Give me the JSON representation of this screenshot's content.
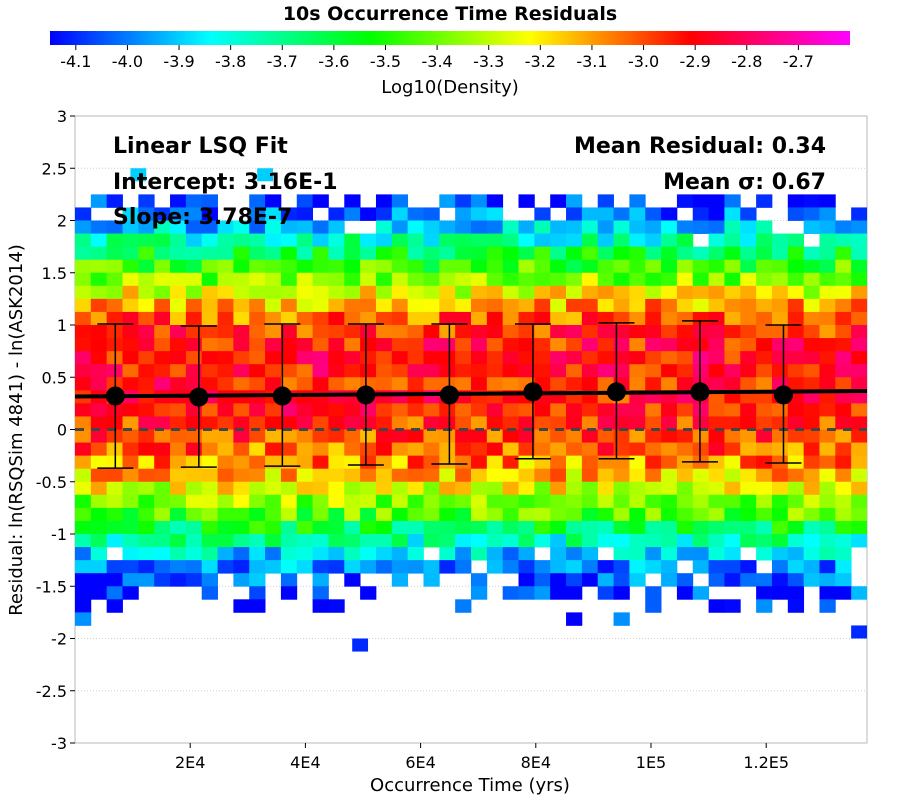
{
  "chart_data": {
    "type": "heatmap",
    "title": "10s Occurrence Time Residuals",
    "colorbar": {
      "label": "Log10(Density)",
      "ticks": [
        "-4.1",
        "-4.0",
        "-3.9",
        "-3.8",
        "-3.7",
        "-3.6",
        "-3.5",
        "-3.4",
        "-3.3",
        "-3.2",
        "-3.1",
        "-3.0",
        "-2.9",
        "-2.8",
        "-2.7"
      ],
      "range": [
        -4.15,
        -2.6
      ],
      "colors": [
        "#0000ff",
        "#00ffff",
        "#00ff00",
        "#ffff00",
        "#ff0000",
        "#ff00ff"
      ]
    },
    "xlabel": "Occurrence Time (yrs)",
    "ylabel": "Residual: ln(RSQSim 4841) - ln(ASK2014)",
    "xlim": [
      0,
      137500
    ],
    "ylim": [
      -3,
      3
    ],
    "xticks": [
      {
        "value": 20000,
        "label": "2E4"
      },
      {
        "value": 40000,
        "label": "4E4"
      },
      {
        "value": 60000,
        "label": "6E4"
      },
      {
        "value": 80000,
        "label": "8E4"
      },
      {
        "value": 100000,
        "label": "1E5"
      },
      {
        "value": 120000,
        "label": "1.2E5"
      }
    ],
    "yticks": [
      {
        "value": 3,
        "label": "3"
      },
      {
        "value": 2.5,
        "label": "2.5"
      },
      {
        "value": 2,
        "label": "2"
      },
      {
        "value": 1.5,
        "label": "1.5"
      },
      {
        "value": 1,
        "label": "1"
      },
      {
        "value": 0.5,
        "label": "0.5"
      },
      {
        "value": 0,
        "label": "0"
      },
      {
        "value": -0.5,
        "label": "-0.5"
      },
      {
        "value": -1,
        "label": "-1"
      },
      {
        "value": -1.5,
        "label": "-1.5"
      },
      {
        "value": -2,
        "label": "-2"
      },
      {
        "value": -2.5,
        "label": "-2.5"
      },
      {
        "value": -3,
        "label": "-3"
      }
    ],
    "grid": true,
    "bins": {
      "x_width": 2750,
      "y_height": 0.125
    },
    "density_profile": {
      "y_centers": [
        2.1875,
        2.0625,
        1.9375,
        1.8125,
        1.6875,
        1.5625,
        1.4375,
        1.3125,
        1.1875,
        1.0625,
        0.9375,
        0.8125,
        0.6875,
        0.5625,
        0.4375,
        0.3125,
        0.1875,
        0.0625,
        -0.0625,
        -0.1875,
        -0.3125,
        -0.4375,
        -0.5625,
        -0.6875,
        -0.8125,
        -0.9375,
        -1.0625,
        -1.1875,
        -1.3125,
        -1.4375,
        -1.5625,
        -1.6875,
        -1.8125
      ],
      "log10_density": [
        -4.08,
        -4.02,
        -3.9,
        -3.75,
        -3.6,
        -3.48,
        -3.36,
        -3.25,
        -3.12,
        -3.02,
        -2.95,
        -2.92,
        -2.9,
        -2.9,
        -2.92,
        -2.92,
        -2.93,
        -2.95,
        -2.98,
        -3.02,
        -3.08,
        -3.15,
        -3.25,
        -3.35,
        -3.45,
        -3.6,
        -3.75,
        -3.88,
        -3.98,
        -4.05,
        -4.08,
        -4.1,
        -4.12
      ],
      "coverage": [
        0.55,
        0.75,
        0.92,
        0.97,
        0.98,
        0.99,
        1,
        1,
        1,
        1,
        1,
        1,
        1,
        1,
        1,
        1,
        1,
        1,
        1,
        1,
        1,
        1,
        1,
        1,
        1,
        1,
        1,
        0.95,
        0.85,
        0.7,
        0.55,
        0.3,
        0.12
      ]
    },
    "outlier_cells": [
      {
        "x": 11000,
        "y": 2.4375,
        "log10_density": -3.9
      },
      {
        "x": 33000,
        "y": 2.4375,
        "log10_density": -3.9
      },
      {
        "x": 49500,
        "y": -2.0625,
        "log10_density": -4.1
      },
      {
        "x": 136125,
        "y": -1.9375,
        "log10_density": -4.1
      }
    ],
    "series": [
      {
        "name": "Linear LSQ Fit",
        "type": "line",
        "x": [
          0,
          137500
        ],
        "y": [
          0.316,
          0.368
        ]
      },
      {
        "type": "scatter_errorbar",
        "x": [
          7000,
          21500,
          36000,
          50500,
          65000,
          79500,
          94000,
          108500,
          123000
        ],
        "y": [
          0.32,
          0.31,
          0.32,
          0.33,
          0.33,
          0.36,
          0.36,
          0.36,
          0.33
        ],
        "err_low": [
          -0.37,
          -0.36,
          -0.35,
          -0.34,
          -0.33,
          -0.28,
          -0.28,
          -0.31,
          -0.32
        ],
        "err_high": [
          1.01,
          0.99,
          1.01,
          1.01,
          1.01,
          1.01,
          1.02,
          1.04,
          1.0
        ]
      },
      {
        "type": "reference_line",
        "y": 0,
        "style": "dashed"
      }
    ],
    "annotations": {
      "fit_title": "Linear LSQ Fit",
      "intercept": "Intercept: 3.16E-1",
      "slope": "Slope: 3.78E-7",
      "mean_residual": "Mean Residual: 0.34",
      "mean_sigma": "Mean σ: 0.67"
    }
  }
}
